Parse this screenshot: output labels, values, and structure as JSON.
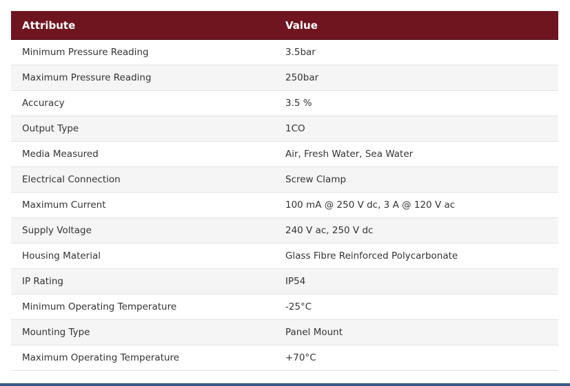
{
  "table": {
    "headers": {
      "attribute": "Attribute",
      "value": "Value"
    },
    "rows": [
      {
        "attribute": "Minimum Pressure Reading",
        "value": "3.5bar"
      },
      {
        "attribute": "Maximum Pressure Reading",
        "value": "250bar"
      },
      {
        "attribute": "Accuracy",
        "value": "3.5 %"
      },
      {
        "attribute": "Output Type",
        "value": "1CO"
      },
      {
        "attribute": "Media Measured",
        "value": "Air, Fresh Water, Sea Water"
      },
      {
        "attribute": "Electrical Connection",
        "value": "Screw Clamp"
      },
      {
        "attribute": "Maximum Current",
        "value": "100 mA @ 250 V dc, 3 A @ 120 V ac"
      },
      {
        "attribute": "Supply Voltage",
        "value": "240 V ac, 250 V dc"
      },
      {
        "attribute": "Housing Material",
        "value": "Glass Fibre Reinforced Polycarbonate"
      },
      {
        "attribute": "IP Rating",
        "value": "IP54"
      },
      {
        "attribute": "Minimum Operating Temperature",
        "value": "-25°C"
      },
      {
        "attribute": "Mounting Type",
        "value": "Panel Mount"
      },
      {
        "attribute": "Maximum Operating Temperature",
        "value": "+70°C"
      }
    ]
  },
  "colors": {
    "header_background": "#6e1520",
    "header_text": "#ffffff",
    "row_alt_background": "#f5f5f5",
    "bottom_bar": "#3a5a8c"
  }
}
